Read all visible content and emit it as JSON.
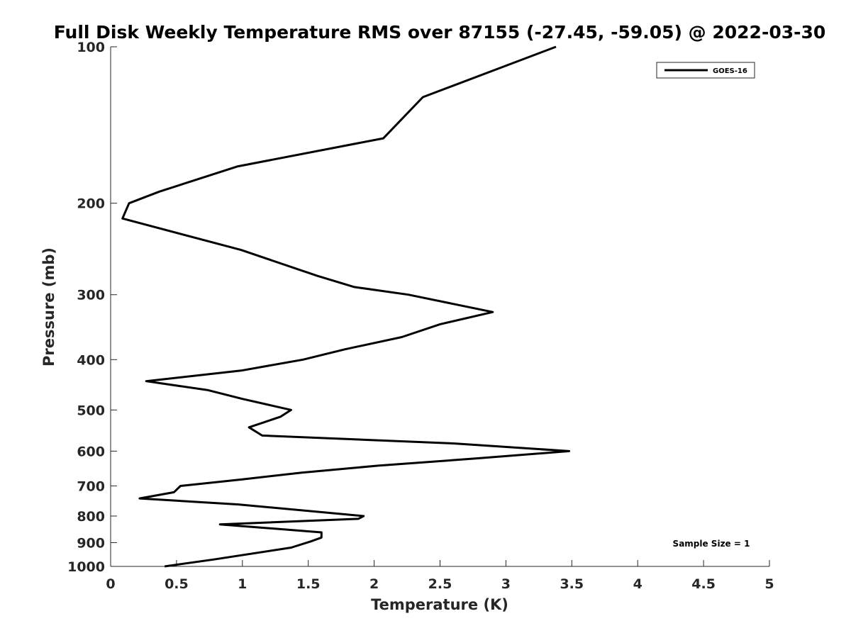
{
  "chart_data": {
    "type": "line",
    "title": "Full Disk Weekly Temperature RMS over 87155 (-27.45, -59.05) @ 2022-03-30",
    "xlabel": "Temperature (K)",
    "ylabel": "Pressure (mb)",
    "xlim": [
      0,
      5
    ],
    "ylim": [
      100,
      1000
    ],
    "yscale": "log",
    "y_reversed": true,
    "xticks": [
      0,
      0.5,
      1,
      1.5,
      2,
      2.5,
      3,
      3.5,
      4,
      4.5,
      5
    ],
    "xtick_labels": [
      "0",
      "0.5",
      "1",
      "1.5",
      "2",
      "2.5",
      "3",
      "3.5",
      "4",
      "4.5",
      "5"
    ],
    "yticks": [
      100,
      200,
      300,
      400,
      500,
      600,
      700,
      800,
      900,
      1000
    ],
    "ytick_labels": [
      "100",
      "200",
      "300",
      "400",
      "500",
      "600",
      "700",
      "800",
      "900",
      "1000"
    ],
    "grid": false,
    "legend_position": "top-right",
    "annotation": "Sample Size = 1",
    "series": [
      {
        "name": "GOES-16",
        "color": "#000000",
        "x": [
          3.38,
          2.37,
          2.07,
          0.96,
          0.37,
          0.14,
          0.09,
          0.99,
          1.57,
          1.85,
          2.26,
          2.9,
          2.5,
          2.21,
          1.78,
          1.46,
          0.99,
          0.27,
          0.74,
          1.0,
          1.37,
          1.29,
          1.05,
          1.15,
          2.61,
          3.48,
          2.77,
          2.03,
          1.45,
          1.0,
          0.53,
          0.48,
          0.22,
          0.97,
          1.92,
          1.88,
          0.83,
          1.6,
          1.6,
          1.52,
          1.37,
          0.78,
          0.41
        ],
        "y": [
          100,
          125,
          150,
          170,
          190,
          200,
          214,
          246,
          276,
          290,
          300,
          324,
          342,
          362,
          382,
          400,
          420,
          440,
          458,
          476,
          500,
          515,
          540,
          560,
          580,
          600,
          620,
          640,
          660,
          680,
          700,
          720,
          740,
          760,
          800,
          810,
          830,
          860,
          880,
          895,
          920,
          970,
          1000
        ]
      }
    ]
  }
}
